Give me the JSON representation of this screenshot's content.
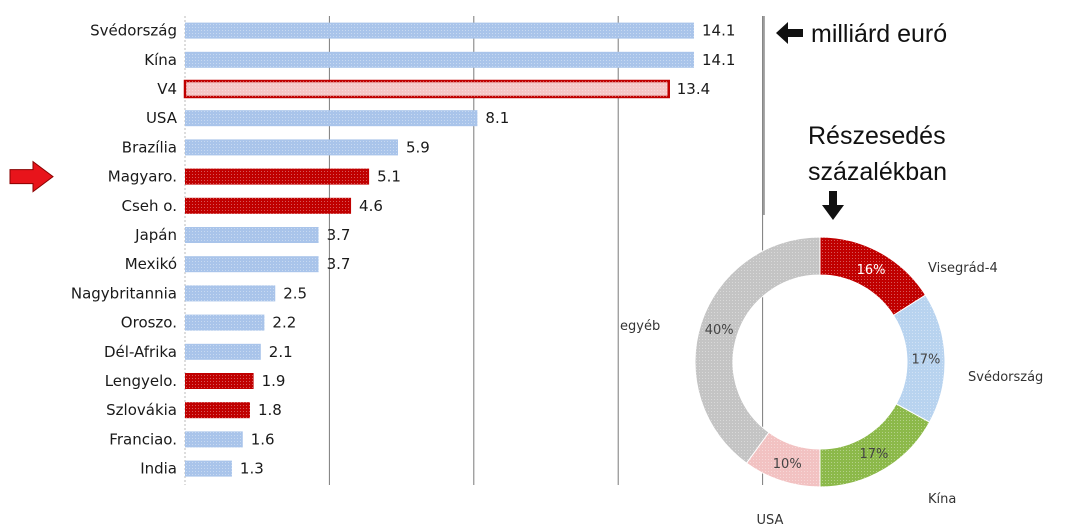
{
  "chart_data": [
    {
      "type": "bar",
      "orientation": "horizontal",
      "categories": [
        "Svédország",
        "Kína",
        "V4",
        "USA",
        "Brazília",
        "Magyaro.",
        "Cseh o.",
        "Japán",
        "Mexikó",
        "Nagybritannia",
        "Oroszo.",
        "Dél-Afrika",
        "Lengyelo.",
        "Szlovákia",
        "Franciao.",
        "India"
      ],
      "values": [
        14.1,
        14.1,
        13.4,
        8.1,
        5.9,
        5.1,
        4.6,
        3.7,
        3.7,
        2.5,
        2.2,
        2.1,
        1.9,
        1.8,
        1.6,
        1.3
      ],
      "value_labels": [
        "14.1",
        "14.1",
        "13.4",
        "8.1",
        "5.9",
        "5.1",
        "4.6",
        "3.7",
        "3.7",
        "2.5",
        "2.2",
        "2.1",
        "1.9",
        "1.8",
        "1.6",
        "1.3"
      ],
      "highlight_v4_total": "V4",
      "highlight_v4_members": [
        "Magyaro.",
        "Cseh o.",
        "Lengyelo.",
        "Szlovákia"
      ],
      "pointer_arrow_at": "Magyaro.",
      "unit_note": "milliárd euró",
      "xlim": [
        0,
        16
      ],
      "grid": true,
      "colors": {
        "default": "#a9c4ea",
        "v4_member": "#c00000",
        "v4_total_fill": "#f4c6c6",
        "v4_total_border": "#c00000",
        "arrow": "#e8141b"
      }
    },
    {
      "type": "pie",
      "variant": "donut",
      "title": "Részesedés\nszázalékban",
      "title_lines": [
        "Részesedés",
        "százalékban"
      ],
      "slices": [
        {
          "label": "Visegrád-4",
          "value": 16,
          "pct_label": "16%",
          "color": "#c00000"
        },
        {
          "label": "Svédország",
          "value": 17,
          "pct_label": "17%",
          "color": "#b8d3ef"
        },
        {
          "label": "Kína",
          "value": 17,
          "pct_label": "17%",
          "color": "#8cb94a"
        },
        {
          "label": "USA",
          "value": 10,
          "pct_label": "10%",
          "color": "#f2c2c2"
        },
        {
          "label": "egyéb",
          "value": 40,
          "pct_label": "40%",
          "color": "#c4c4c4"
        }
      ]
    }
  ]
}
